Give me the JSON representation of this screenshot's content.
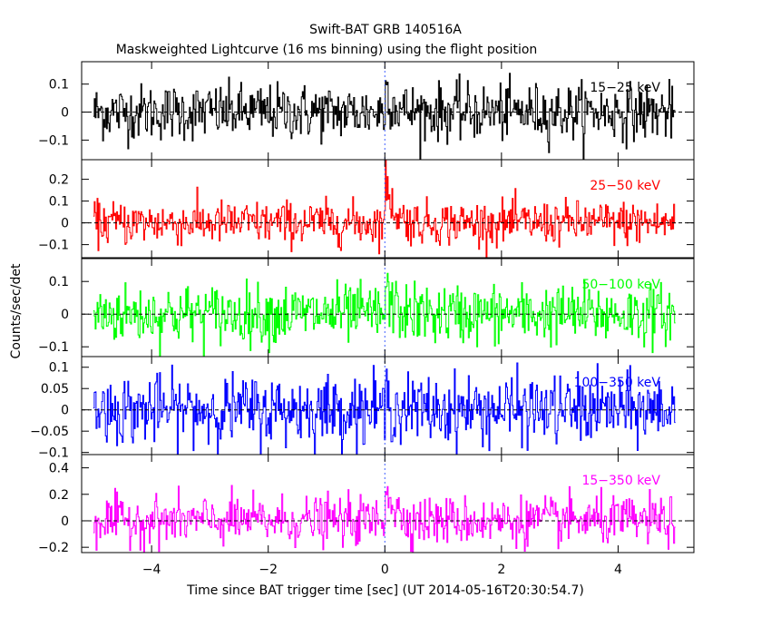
{
  "chart_data": {
    "type": "line",
    "title": "Swift-BAT GRB 140516A",
    "subtitle": "Maskweighted Lightcurve (16 ms binning) using the flight position",
    "xlabel": "Time since BAT trigger time [sec] (UT 2014-05-16T20:30:54.7)",
    "ylabel": "Counts/sec/det",
    "xlim": [
      -5.2,
      5.3
    ],
    "x_ticks": [
      "−4",
      "−2",
      "0",
      "2",
      "4"
    ],
    "x_tick_values": [
      -4,
      -2,
      0,
      2,
      4
    ],
    "bin_size_sec": 0.016,
    "x_start": -5.0,
    "x_end": 4.98,
    "burst_time": 0.0,
    "panels": [
      {
        "name": "15-25 keV",
        "label": "15−25 keV",
        "color": "#000000",
        "ylim": [
          -0.17,
          0.18
        ],
        "y_ticks": [
          "−0.1",
          "0",
          "0.1"
        ],
        "y_tick_values": [
          -0.1,
          0,
          0.1
        ],
        "noise_sigma": 0.05,
        "peak": 0.1
      },
      {
        "name": "25-50 keV",
        "label": "25−50 keV",
        "color": "#ff0000",
        "ylim": [
          -0.16,
          0.29
        ],
        "y_ticks": [
          "−0.1",
          "0",
          "0.1",
          "0.2"
        ],
        "y_tick_values": [
          -0.1,
          0,
          0.1,
          0.2
        ],
        "noise_sigma": 0.05,
        "peak": 0.22
      },
      {
        "name": "50-100 keV",
        "label": "50−100 keV",
        "color": "#00ff00",
        "ylim": [
          -0.13,
          0.17
        ],
        "y_ticks": [
          "−0.1",
          "0",
          "0.1"
        ],
        "y_tick_values": [
          -0.1,
          0,
          0.1
        ],
        "noise_sigma": 0.045,
        "peak": 0.08
      },
      {
        "name": "100-350 keV",
        "label": "100−350 keV",
        "color": "#0000ff",
        "ylim": [
          -0.105,
          0.125
        ],
        "y_ticks": [
          "−0.1",
          "−0.05",
          "0",
          "0.05",
          "0.1"
        ],
        "y_tick_values": [
          -0.1,
          -0.05,
          0,
          0.05,
          0.1
        ],
        "noise_sigma": 0.04,
        "peak": 0.03
      },
      {
        "name": "15-350 keV",
        "label": "15−350 keV",
        "color": "#ff00ff",
        "ylim": [
          -0.24,
          0.5
        ],
        "y_ticks": [
          "−0.2",
          "0",
          "0.2",
          "0.4"
        ],
        "y_tick_values": [
          -0.2,
          0,
          0.2,
          0.4
        ],
        "noise_sigma": 0.09,
        "peak": 0.35
      }
    ]
  }
}
